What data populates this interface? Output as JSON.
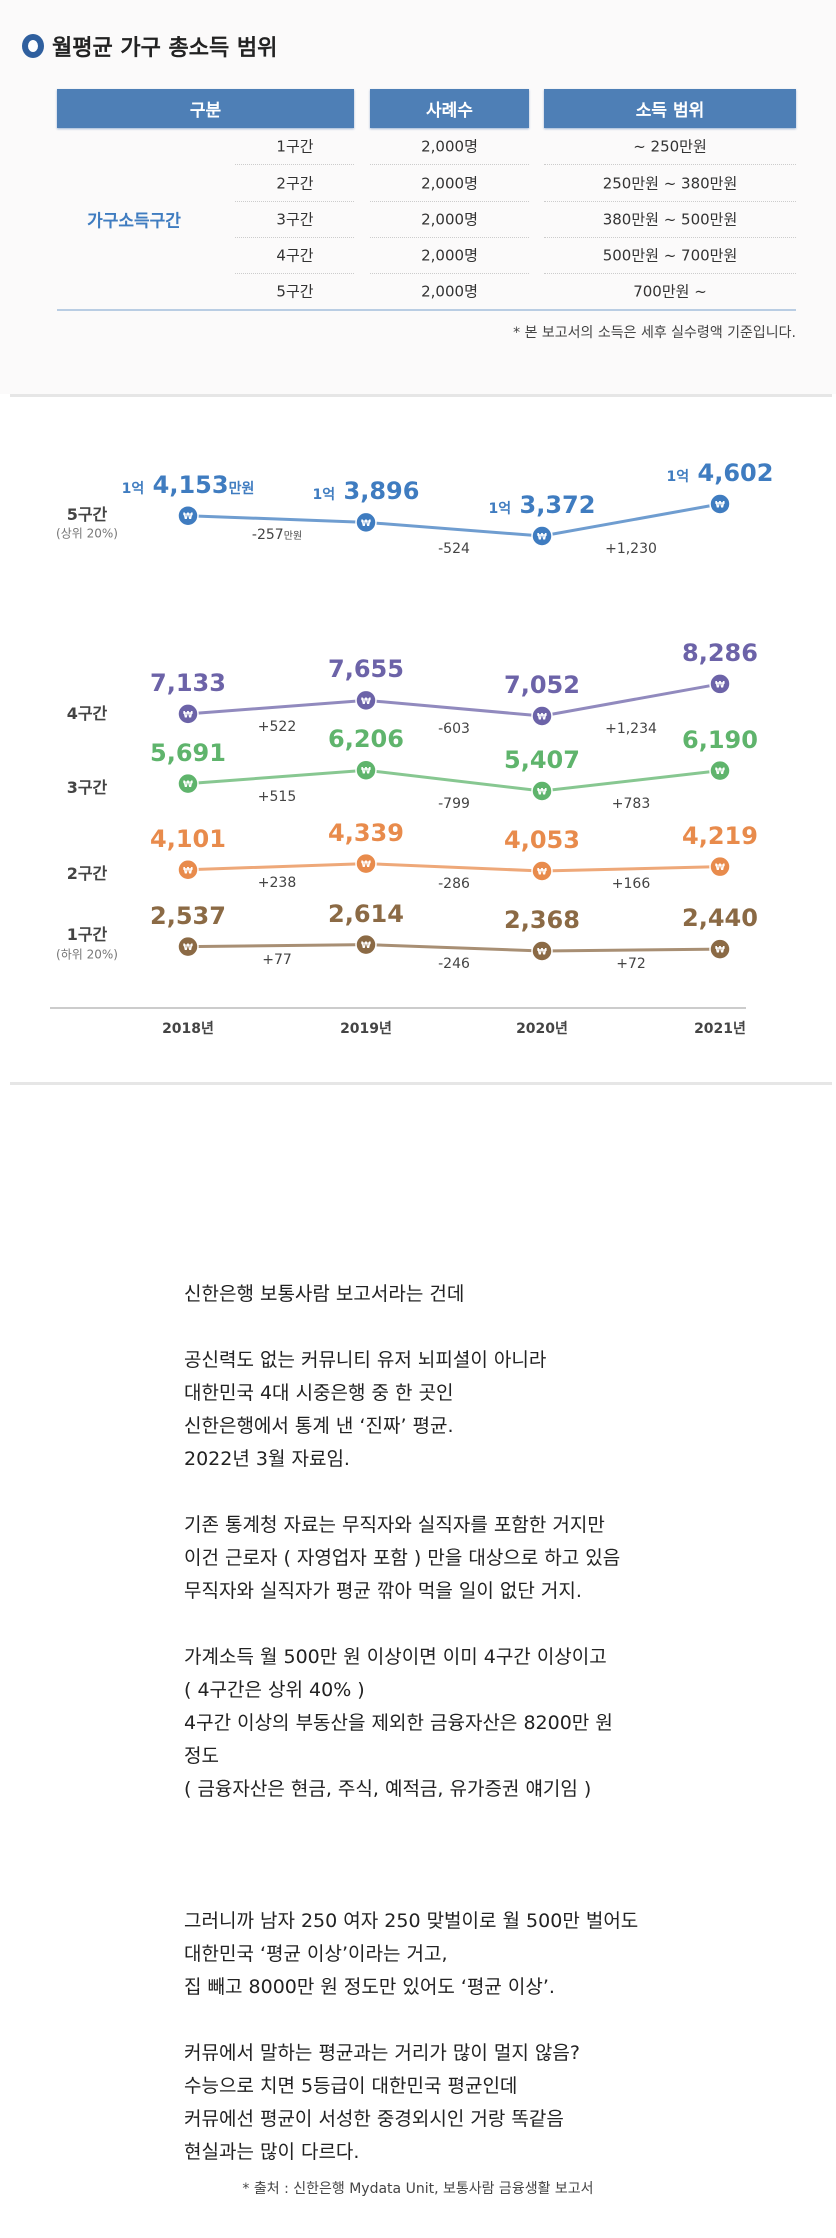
{
  "table": {
    "title": "월평균 가구 총소득 범위",
    "headers": [
      "구분",
      "사례수",
      "소득 범위"
    ],
    "group_label": "가구소득구간",
    "rows": [
      {
        "tier": "1구간",
        "count": "2,000명",
        "range": "~ 250만원"
      },
      {
        "tier": "2구간",
        "count": "2,000명",
        "range": "250만원 ~ 380만원"
      },
      {
        "tier": "3구간",
        "count": "2,000명",
        "range": "380만원 ~ 500만원"
      },
      {
        "tier": "4구간",
        "count": "2,000명",
        "range": "500만원 ~ 700만원"
      },
      {
        "tier": "5구간",
        "count": "2,000명",
        "range": "700만원 ~"
      }
    ],
    "footnote": "* 본 보고서의 소득은 세후 실수령액 기준입니다."
  },
  "chart_data": {
    "type": "line",
    "categories": [
      "2018년",
      "2019년",
      "2020년",
      "2021년"
    ],
    "unit": "만원",
    "series": [
      {
        "name": "5구간",
        "sub": "(상위 20%)",
        "color": "#3f7cc0",
        "values": [
          14153,
          13896,
          13372,
          14602
        ],
        "labels": [
          {
            "pre": "1억",
            "num": "4,153",
            "suf": "만원"
          },
          {
            "pre": "1억",
            "num": "3,896",
            "suf": ""
          },
          {
            "pre": "1억",
            "num": "3,372",
            "suf": ""
          },
          {
            "pre": "1억",
            "num": "4,602",
            "suf": ""
          }
        ],
        "deltas": [
          {
            "num": "-257",
            "suf": "만원"
          },
          {
            "num": "-524",
            "suf": ""
          },
          {
            "num": "+1,230",
            "suf": ""
          }
        ]
      },
      {
        "name": "4구간",
        "sub": "",
        "color": "#6c63a8",
        "values": [
          7133,
          7655,
          7052,
          8286
        ],
        "labels": [
          {
            "pre": "",
            "num": "7,133",
            "suf": ""
          },
          {
            "pre": "",
            "num": "7,655",
            "suf": ""
          },
          {
            "pre": "",
            "num": "7,052",
            "suf": ""
          },
          {
            "pre": "",
            "num": "8,286",
            "suf": ""
          }
        ],
        "deltas": [
          {
            "num": "+522",
            "suf": ""
          },
          {
            "num": "-603",
            "suf": ""
          },
          {
            "num": "+1,234",
            "suf": ""
          }
        ]
      },
      {
        "name": "3구간",
        "sub": "",
        "color": "#5fb46c",
        "values": [
          5691,
          6206,
          5407,
          6190
        ],
        "labels": [
          {
            "pre": "",
            "num": "5,691",
            "suf": ""
          },
          {
            "pre": "",
            "num": "6,206",
            "suf": ""
          },
          {
            "pre": "",
            "num": "5,407",
            "suf": ""
          },
          {
            "pre": "",
            "num": "6,190",
            "suf": ""
          }
        ],
        "deltas": [
          {
            "num": "+515",
            "suf": ""
          },
          {
            "num": "-799",
            "suf": ""
          },
          {
            "num": "+783",
            "suf": ""
          }
        ]
      },
      {
        "name": "2구간",
        "sub": "",
        "color": "#e88b4c",
        "values": [
          4101,
          4339,
          4053,
          4219
        ],
        "labels": [
          {
            "pre": "",
            "num": "4,101",
            "suf": ""
          },
          {
            "pre": "",
            "num": "4,339",
            "suf": ""
          },
          {
            "pre": "",
            "num": "4,053",
            "suf": ""
          },
          {
            "pre": "",
            "num": "4,219",
            "suf": ""
          }
        ],
        "deltas": [
          {
            "num": "+238",
            "suf": ""
          },
          {
            "num": "-286",
            "suf": ""
          },
          {
            "num": "+166",
            "suf": ""
          }
        ]
      },
      {
        "name": "1구간",
        "sub": "(하위 20%)",
        "color": "#8b6a45",
        "values": [
          2537,
          2614,
          2368,
          2440
        ],
        "labels": [
          {
            "pre": "",
            "num": "2,537",
            "suf": ""
          },
          {
            "pre": "",
            "num": "2,614",
            "suf": ""
          },
          {
            "pre": "",
            "num": "2,368",
            "suf": ""
          },
          {
            "pre": "",
            "num": "2,440",
            "suf": ""
          }
        ],
        "deltas": [
          {
            "num": "+77",
            "suf": ""
          },
          {
            "num": "-246",
            "suf": ""
          },
          {
            "num": "+72",
            "suf": ""
          }
        ]
      }
    ],
    "marker_symbol": "₩"
  },
  "post": {
    "lines": [
      "신한은행 보통사람 보고서라는 건데",
      "",
      "공신력도 없는 커뮤니티 유저 뇌피셜이 아니라",
      "대한민국 4대 시중은행 중 한 곳인",
      "신한은행에서 통계 낸 ‘진짜’ 평균.",
      "2022년 3월 자료임.",
      "",
      "기존 통계청 자료는 무직자와 실직자를 포함한 거지만",
      "이건 근로자 ( 자영업자 포함 ) 만을 대상으로 하고 있음",
      "무직자와 실직자가 평균 깎아 먹을 일이 없단 거지.",
      "",
      "가계소득 월 500만 원 이상이면 이미 4구간 이상이고",
      "( 4구간은 상위 40% )",
      "4구간 이상의 부동산을 제외한 금융자산은 8200만 원",
      "정도",
      "( 금융자산은 현금, 주식, 예적금, 유가증권 얘기임 )",
      "",
      "",
      "",
      "그러니까 남자 250 여자 250 맞벌이로 월 500만 벌어도",
      "대한민국 ‘평균 이상’이라는 거고,",
      "집 빼고 8000만 원 정도만 있어도 ‘평균 이상’.",
      "",
      "커뮤에서 말하는 평균과는 거리가 많이 멀지 않음?",
      "수능으로 치면 5등급이 대한민국 평균인데",
      "커뮤에선 평균이 서성한 중경외시인 거랑 똑같음",
      "현실과는 많이 다르다."
    ],
    "source": "* 출처 : 신한은행 Mydata Unit, 보통사람 금융생활 보고서"
  }
}
